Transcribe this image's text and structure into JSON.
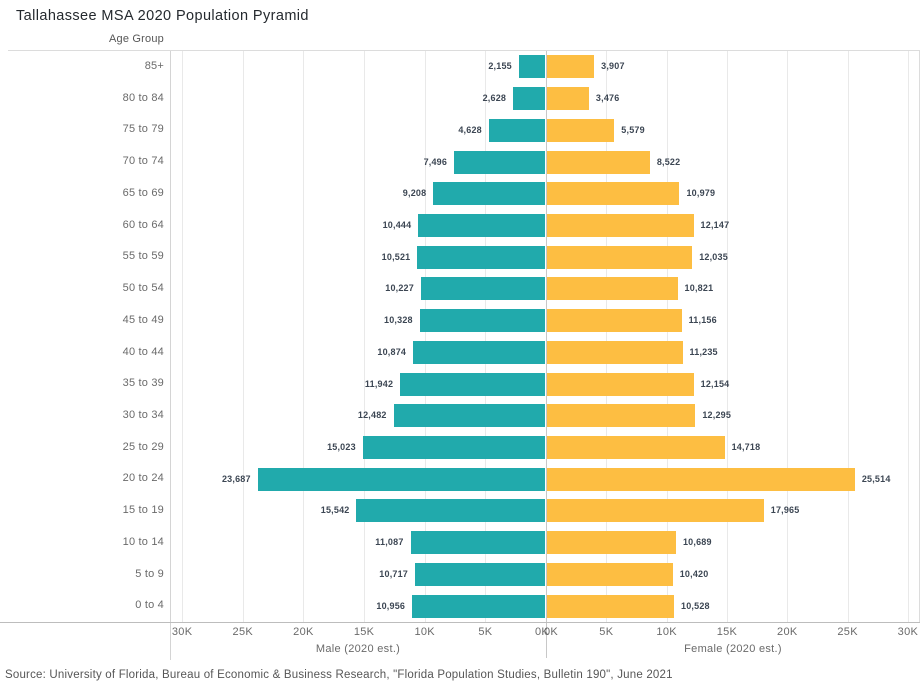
{
  "title": "Tallahassee MSA 2020 Population Pyramid",
  "row_header": "Age Group",
  "source": "Source: University of Florida, Bureau of Economic & Business Research, \"Florida Population Studies, Bulletin 190\", June 2021",
  "axis": {
    "left_title": "Male (2020 est.)",
    "right_title": "Female (2020 est.)",
    "tick_values_k": [
      0,
      5,
      10,
      15,
      20,
      25,
      30
    ],
    "tick_suffix": "K"
  },
  "colors": {
    "male_bar": "#21AAAC",
    "female_bar": "#FDBE42",
    "value_label": "#3C4653",
    "gridline": "#E9E9E9",
    "center_line": "#C8C8C8",
    "axis_line": "#BDBDBD",
    "border": "#DCDCDC",
    "muted_text": "#6A6A6A",
    "title_text": "#24292E"
  },
  "chart_data": {
    "type": "bar",
    "subtype": "population_pyramid",
    "title": "Tallahassee MSA 2020 Population Pyramid",
    "ylabel": "Age Group",
    "xlabel_left": "Male (2020 est.)",
    "xlabel_right": "Female (2020 est.)",
    "xlim_each_side": [
      0,
      31000
    ],
    "x_tick_interval": 5000,
    "grid": true,
    "legend_position": "none",
    "value_labels": true,
    "categories_top_to_bottom": [
      "85+",
      "80 to 84",
      "75 to 79",
      "70 to 74",
      "65 to 69",
      "60 to 64",
      "55 to 59",
      "50 to 54",
      "45 to 49",
      "40 to 44",
      "35 to 39",
      "30 to 34",
      "25 to 29",
      "20 to 24",
      "15 to 19",
      "10 to 14",
      "5 to 9",
      "0 to 4"
    ],
    "series": [
      {
        "name": "Male (2020 est.)",
        "side": "left",
        "color": "#21AAAC",
        "values": [
          2155,
          2628,
          4628,
          7496,
          9208,
          10444,
          10521,
          10227,
          10328,
          10874,
          11942,
          12482,
          15023,
          23687,
          15542,
          11087,
          10717,
          10956
        ]
      },
      {
        "name": "Female (2020 est.)",
        "side": "right",
        "color": "#FDBE42",
        "values": [
          3907,
          3476,
          5579,
          8522,
          10979,
          12147,
          12035,
          10821,
          11156,
          11235,
          12154,
          12295,
          14718,
          25514,
          17965,
          10689,
          10420,
          10528
        ]
      }
    ]
  }
}
